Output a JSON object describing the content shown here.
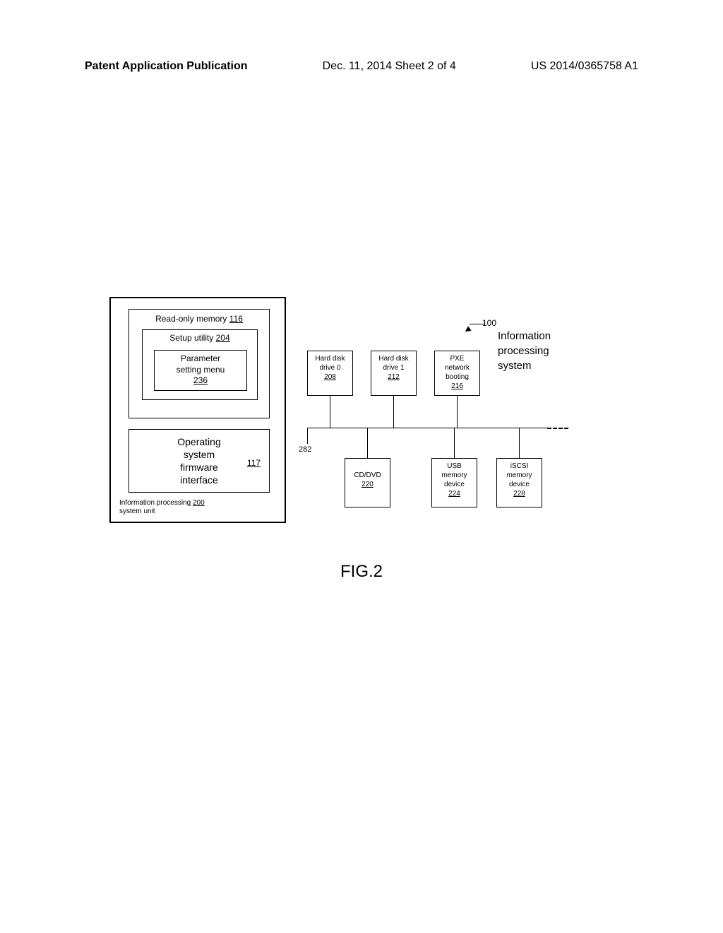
{
  "header": {
    "left": "Patent Application Publication",
    "center": "Dec. 11, 2014  Sheet 2 of 4",
    "right": "US 2014/0365758 A1"
  },
  "figure": {
    "caption": "FIG.2",
    "system_ref": "100",
    "system_label_l1": "Information",
    "system_label_l2": "processing",
    "system_label_l3": "system",
    "bus_ref": "282",
    "unit": {
      "label_l1": "Information processing",
      "label_ref": "200",
      "label_l2": "system unit"
    },
    "rom": {
      "title": "Read-only memory",
      "ref": "116",
      "setup": {
        "title": "Setup utility",
        "ref": "204",
        "param": {
          "title_l1": "Parameter",
          "title_l2": "setting menu",
          "ref": "236"
        }
      }
    },
    "osfw": {
      "title_l1": "Operating",
      "title_l2": "system",
      "title_l3": "firmware",
      "title_l4": "interface",
      "ref": "117"
    },
    "devices": {
      "hdd0": {
        "l1": "Hard disk",
        "l2": "drive 0",
        "ref": "208"
      },
      "hdd1": {
        "l1": "Hard disk",
        "l2": "drive 1",
        "ref": "212"
      },
      "pxe": {
        "l1": "PXE",
        "l2": "network",
        "l3": "booting",
        "ref": "216"
      },
      "cddvd": {
        "l1": "CD/DVD",
        "ref": "220"
      },
      "usb": {
        "l1": "USB",
        "l2": "memory",
        "l3": "device",
        "ref": "224"
      },
      "iscsi": {
        "l1": "iSCSI",
        "l2": "memory",
        "l3": "device",
        "ref": "228"
      }
    }
  }
}
